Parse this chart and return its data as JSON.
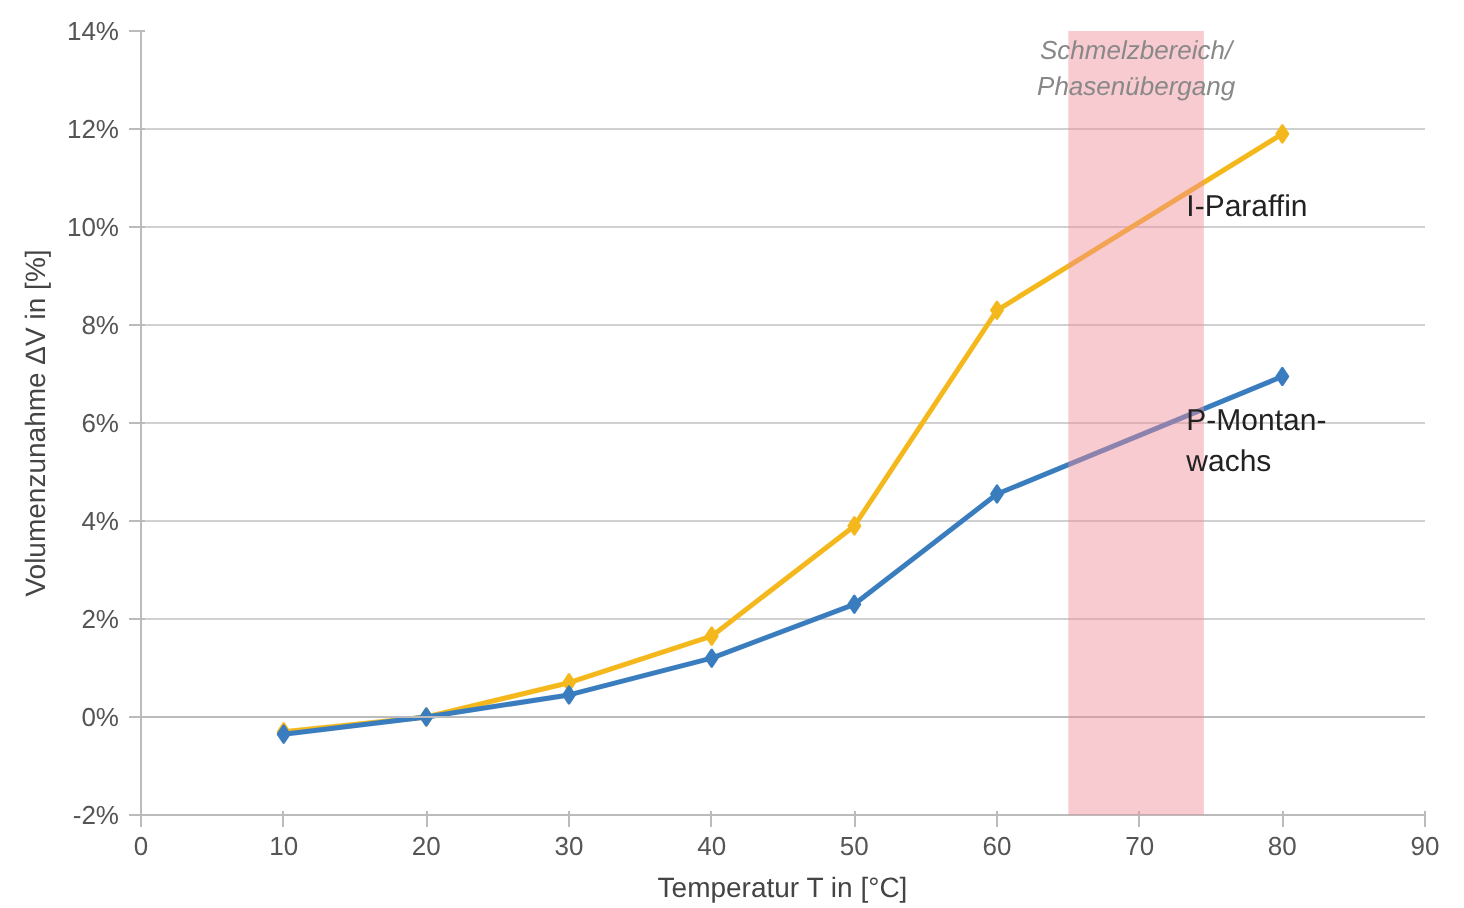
{
  "chart_data": {
    "type": "line",
    "xlabel": "Temperatur T in [°C]",
    "ylabel": "Volumenzunahme ΔV in [%]",
    "x": [
      10,
      20,
      30,
      40,
      50,
      60,
      80
    ],
    "series": [
      {
        "name": "I-Paraffin",
        "color": "#f5b81c",
        "values": [
          -0.3,
          0,
          0.7,
          1.65,
          3.9,
          8.3,
          11.9
        ]
      },
      {
        "name": "P-Montan-\nwachs",
        "color": "#3a7dbf",
        "values": [
          -0.35,
          0,
          0.45,
          1.2,
          2.3,
          4.55,
          6.95
        ]
      }
    ],
    "xlim": [
      0,
      90
    ],
    "xticks": [
      0,
      10,
      20,
      30,
      40,
      50,
      60,
      70,
      80,
      90
    ],
    "ylim": [
      -2,
      14
    ],
    "yticks": [
      {
        "value": -2,
        "label": "-2%"
      },
      {
        "value": 0,
        "label": "0%"
      },
      {
        "value": 2,
        "label": "2%"
      },
      {
        "value": 4,
        "label": "4%"
      },
      {
        "value": 6,
        "label": "6%"
      },
      {
        "value": 8,
        "label": "8%"
      },
      {
        "value": 10,
        "label": "10%"
      },
      {
        "value": 12,
        "label": "12%"
      },
      {
        "value": 14,
        "label": "14%"
      }
    ],
    "bands": [
      {
        "axis": "x",
        "from": 65,
        "to": 74.5,
        "label": "Schmelzbereich/\nPhasenübergang",
        "color": "#f08c96"
      }
    ],
    "grid": "y",
    "marker": "diamond",
    "line_style": "solid"
  }
}
